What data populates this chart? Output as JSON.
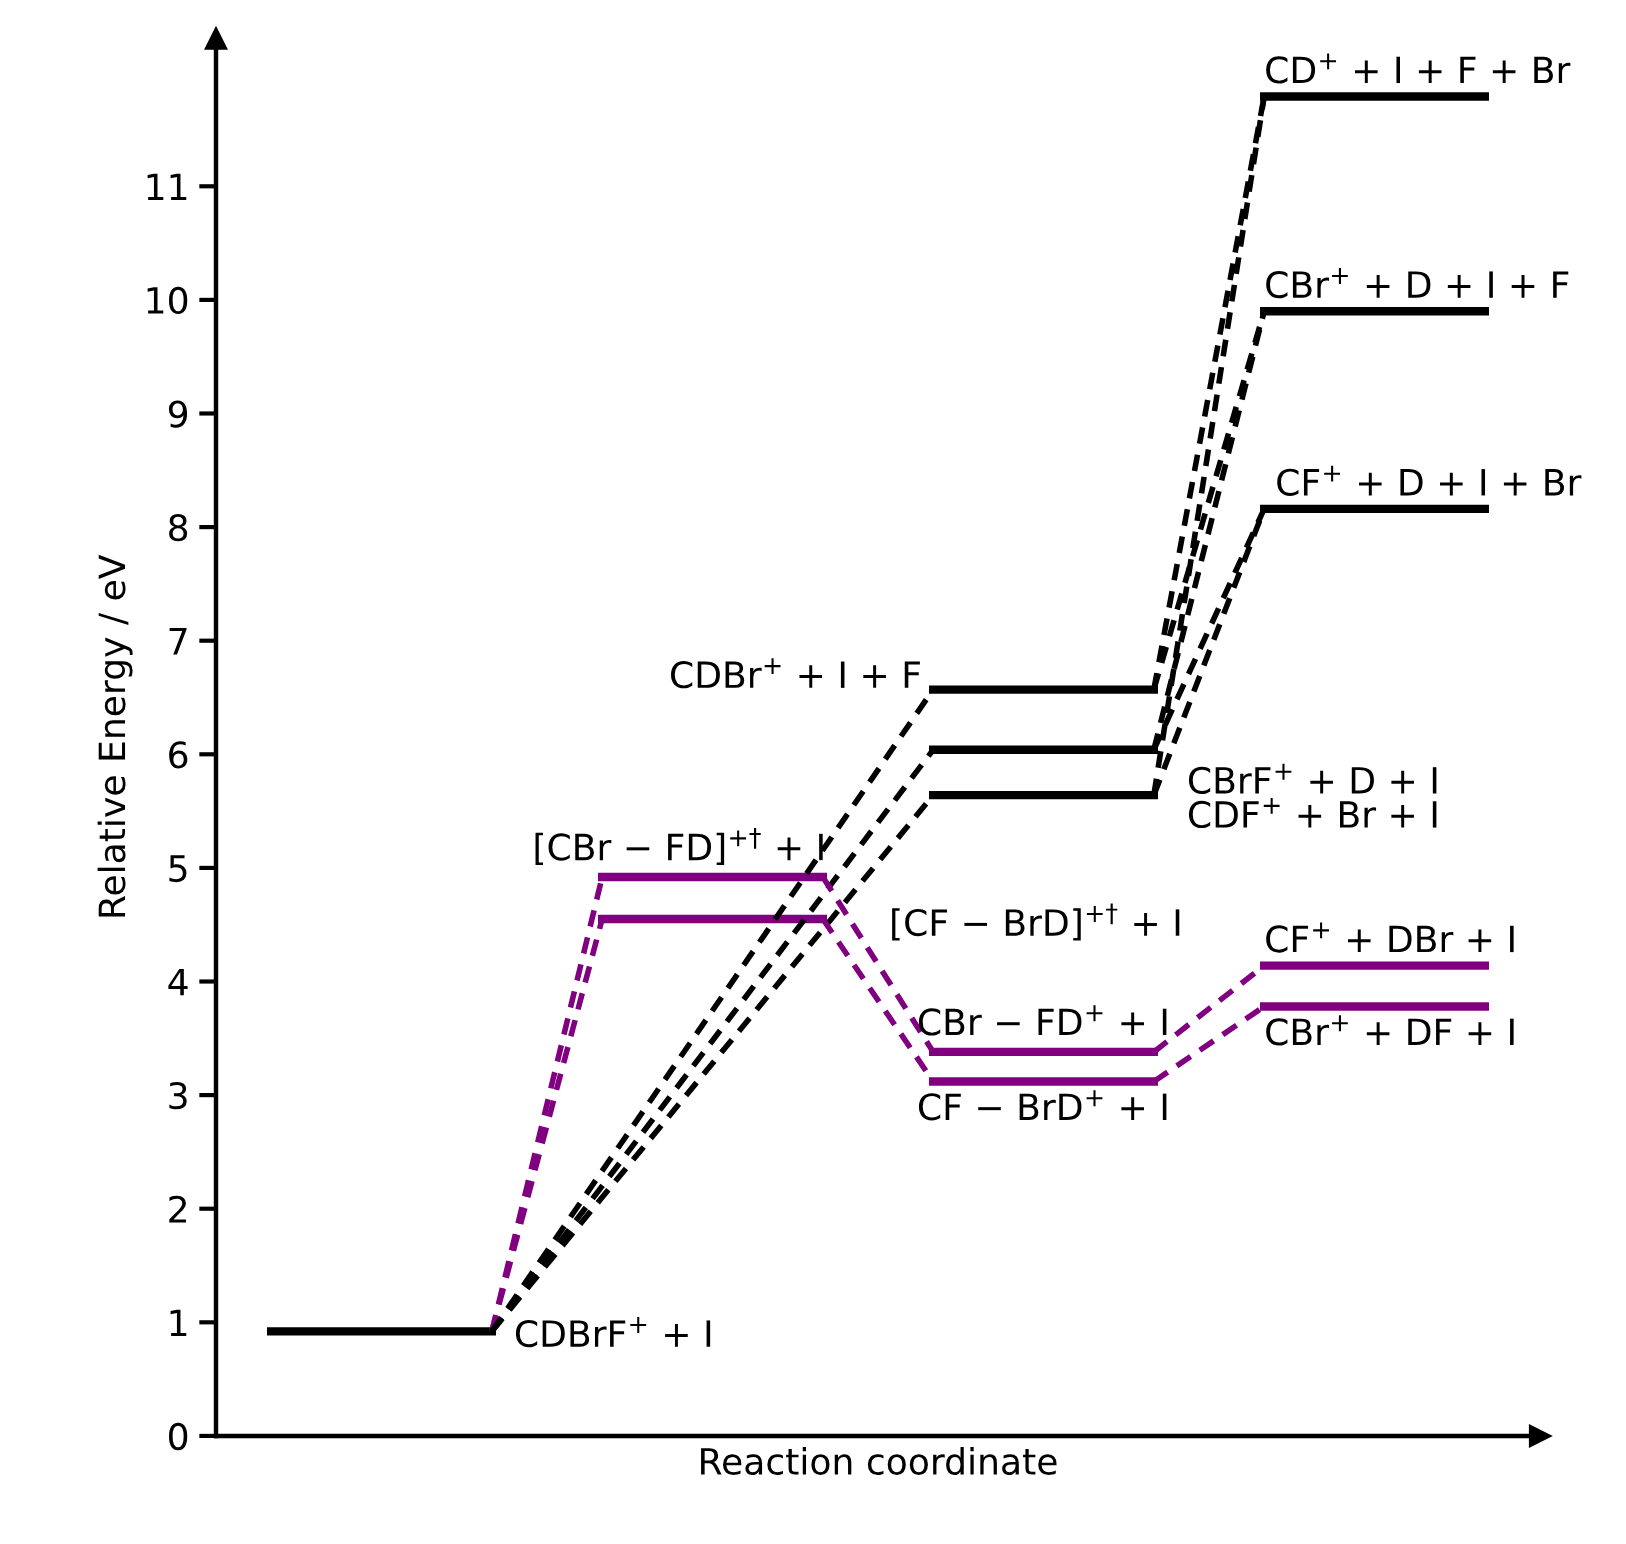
{
  "chart_data": {
    "type": "line",
    "xlabel": "Reaction coordinate",
    "ylabel": "Relative Energy / eV",
    "categories": [
      null,
      null,
      null,
      null,
      null,
      null,
      null,
      null,
      null,
      null,
      null,
      null
    ],
    "ylim": [
      0,
      12.3
    ],
    "yticks": [
      0,
      1,
      2,
      3,
      4,
      5,
      6,
      7,
      8,
      9,
      10,
      11
    ],
    "grid": false,
    "legend": false,
    "marker": "none",
    "tick_labels": "y",
    "series": [
      {
        "name": "CDBrF$^{+}$ + I",
        "color": "#000000",
        "line_style": "solid",
        "values": [
          0.92,
          0.92,
          0.92,
          null,
          null,
          null,
          null,
          null,
          null,
          null,
          null,
          null
        ]
      },
      {
        "name": "[CBr − FD]$^{+†}$ + I",
        "color": "#800080",
        "line_style": "solid",
        "values": [
          null,
          null,
          null,
          4.92,
          4.92,
          4.92,
          null,
          null,
          null,
          null,
          null,
          null
        ]
      },
      {
        "name": "[CF − BrD]$^{+†}$ + I",
        "color": "#800080",
        "line_style": "solid",
        "values": [
          null,
          null,
          null,
          4.55,
          4.55,
          4.55,
          null,
          null,
          null,
          null,
          null,
          null
        ]
      },
      {
        "name": "CDBr$^{+}$ + I + F",
        "color": "#000000",
        "line_style": "solid",
        "values": [
          null,
          null,
          null,
          null,
          null,
          null,
          6.57,
          6.57,
          6.57,
          null,
          null,
          null
        ]
      },
      {
        "name": "CBrF$^{+}$ + D + I",
        "color": "#000000",
        "line_style": "solid",
        "values": [
          null,
          null,
          null,
          null,
          null,
          null,
          6.04,
          6.04,
          6.04,
          null,
          null,
          null
        ]
      },
      {
        "name": "CDF$^{+}$ + Br + I",
        "color": "#000000",
        "line_style": "solid",
        "values": [
          null,
          null,
          null,
          null,
          null,
          null,
          5.64,
          5.64,
          5.64,
          null,
          null,
          null
        ]
      },
      {
        "name": "CBr − FD$^{+}$ + I",
        "color": "#800080",
        "line_style": "solid",
        "values": [
          null,
          null,
          null,
          null,
          null,
          null,
          3.38,
          3.38,
          3.38,
          null,
          null,
          null
        ]
      },
      {
        "name": "CF − BrD$^{+}$ + I",
        "color": "#800080",
        "line_style": "solid",
        "values": [
          null,
          null,
          null,
          null,
          null,
          null,
          3.12,
          3.12,
          3.12,
          null,
          null,
          null
        ]
      },
      {
        "name": "CD$^{+}$ + I + F + Br",
        "color": "#000000",
        "line_style": "solid",
        "values": [
          null,
          null,
          null,
          null,
          null,
          null,
          null,
          null,
          null,
          11.79,
          11.79,
          11.79
        ]
      },
      {
        "name": "CBr$^{+}$ + D + I + F",
        "color": "#000000",
        "line_style": "solid",
        "values": [
          null,
          null,
          null,
          null,
          null,
          null,
          null,
          null,
          null,
          9.9,
          9.9,
          9.9
        ]
      },
      {
        "name": "CF$^{+}$ + D + I + Br",
        "color": "#000000",
        "line_style": "solid",
        "values": [
          null,
          null,
          null,
          null,
          null,
          null,
          null,
          null,
          null,
          8.16,
          8.16,
          8.16
        ]
      },
      {
        "name": "CF$^{+}$ + DBr + I",
        "color": "#800080",
        "line_style": "solid",
        "values": [
          null,
          null,
          null,
          null,
          null,
          null,
          null,
          null,
          null,
          4.14,
          4.14,
          4.14
        ]
      },
      {
        "name": "CBr$^{+}$ + DF + I",
        "color": "#800080",
        "line_style": "solid",
        "values": [
          null,
          null,
          null,
          null,
          null,
          null,
          null,
          null,
          null,
          3.78,
          3.78,
          3.78
        ]
      },
      {
        "color": "#800080",
        "line_style": "dashed",
        "values": [
          null,
          null,
          0.92,
          4.92,
          null,
          null,
          null,
          null,
          null,
          null,
          null,
          null
        ]
      },
      {
        "color": "#800080",
        "line_style": "dashed",
        "values": [
          null,
          null,
          0.92,
          4.55,
          null,
          null,
          null,
          null,
          null,
          null,
          null,
          null
        ]
      },
      {
        "color": "#000000",
        "line_style": "dashed",
        "values": [
          null,
          null,
          0.92,
          null,
          null,
          null,
          6.57,
          null,
          null,
          null,
          null,
          null
        ]
      },
      {
        "color": "#000000",
        "line_style": "dashed",
        "values": [
          null,
          null,
          0.92,
          null,
          null,
          null,
          6.04,
          null,
          null,
          null,
          null,
          null
        ]
      },
      {
        "color": "#000000",
        "line_style": "dashed",
        "values": [
          null,
          null,
          0.92,
          null,
          null,
          null,
          5.64,
          null,
          null,
          null,
          null,
          null
        ]
      },
      {
        "color": "#800080",
        "line_style": "dashed",
        "values": [
          null,
          null,
          null,
          null,
          null,
          4.92,
          3.38,
          null,
          null,
          null,
          null,
          null
        ]
      },
      {
        "color": "#800080",
        "line_style": "dashed",
        "values": [
          null,
          null,
          null,
          null,
          null,
          4.55,
          3.12,
          null,
          null,
          null,
          null,
          null
        ]
      },
      {
        "color": "#800080",
        "line_style": "dashed",
        "values": [
          null,
          null,
          null,
          null,
          null,
          null,
          null,
          null,
          3.38,
          4.14,
          null,
          null
        ]
      },
      {
        "color": "#800080",
        "line_style": "dashed",
        "values": [
          null,
          null,
          null,
          null,
          null,
          null,
          null,
          null,
          3.12,
          3.78,
          null,
          null
        ]
      },
      {
        "color": "#000000",
        "line_style": "dashed",
        "values": [
          null,
          null,
          null,
          null,
          null,
          null,
          null,
          null,
          6.57,
          11.79,
          null,
          null
        ]
      },
      {
        "color": "#000000",
        "line_style": "dashed",
        "values": [
          null,
          null,
          null,
          null,
          null,
          null,
          null,
          null,
          6.57,
          9.9,
          null,
          null
        ]
      },
      {
        "color": "#000000",
        "line_style": "dashed",
        "values": [
          null,
          null,
          null,
          null,
          null,
          null,
          null,
          null,
          6.04,
          9.9,
          null,
          null
        ]
      },
      {
        "color": "#000000",
        "line_style": "dashed",
        "values": [
          null,
          null,
          null,
          null,
          null,
          null,
          null,
          null,
          6.04,
          8.16,
          null,
          null
        ]
      },
      {
        "color": "#000000",
        "line_style": "dashed",
        "values": [
          null,
          null,
          null,
          null,
          null,
          null,
          null,
          null,
          5.64,
          11.79,
          null,
          null
        ]
      },
      {
        "color": "#000000",
        "line_style": "dashed",
        "values": [
          null,
          null,
          null,
          null,
          null,
          null,
          null,
          null,
          5.64,
          8.16,
          null,
          null
        ]
      }
    ]
  }
}
